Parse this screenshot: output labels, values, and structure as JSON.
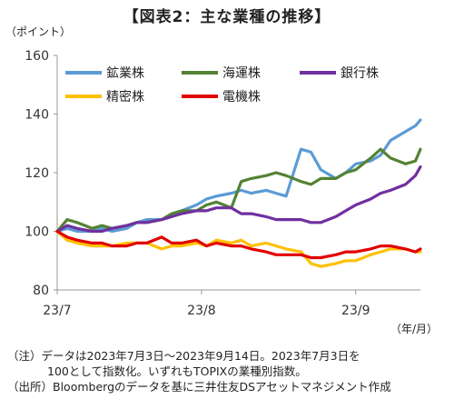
{
  "title": "【図表2：主な業種の推移】",
  "chart_data": {
    "type": "line",
    "y_unit": "（ポイント）",
    "x_unit": "（年/月）",
    "ylim": [
      80,
      160
    ],
    "yticks": [
      80,
      100,
      120,
      140,
      160
    ],
    "xlim": [
      "2023-07-03",
      "2023-09-14"
    ],
    "xticks": [
      {
        "label": "23/7",
        "date": "2023-07-03"
      },
      {
        "label": "23/8",
        "date": "2023-08-01"
      },
      {
        "label": "23/9",
        "date": "2023-09-01"
      }
    ],
    "legend": "top-left, inside plot, 3 columns",
    "series": [
      {
        "name": "鉱業株",
        "color": "#5b9bd5",
        "points": [
          [
            "2023-07-03",
            100
          ],
          [
            "2023-07-05",
            101
          ],
          [
            "2023-07-07",
            100
          ],
          [
            "2023-07-10",
            100
          ],
          [
            "2023-07-12",
            101
          ],
          [
            "2023-07-14",
            100
          ],
          [
            "2023-07-17",
            101
          ],
          [
            "2023-07-19",
            103
          ],
          [
            "2023-07-21",
            104
          ],
          [
            "2023-07-24",
            104
          ],
          [
            "2023-07-26",
            105
          ],
          [
            "2023-07-28",
            107
          ],
          [
            "2023-07-31",
            109
          ],
          [
            "2023-08-02",
            111
          ],
          [
            "2023-08-04",
            112
          ],
          [
            "2023-08-07",
            113
          ],
          [
            "2023-08-09",
            114
          ],
          [
            "2023-08-11",
            113
          ],
          [
            "2023-08-14",
            114
          ],
          [
            "2023-08-16",
            113
          ],
          [
            "2023-08-18",
            112
          ],
          [
            "2023-08-21",
            128
          ],
          [
            "2023-08-23",
            127
          ],
          [
            "2023-08-25",
            121
          ],
          [
            "2023-08-28",
            118
          ],
          [
            "2023-08-30",
            120
          ],
          [
            "2023-09-01",
            123
          ],
          [
            "2023-09-04",
            124
          ],
          [
            "2023-09-06",
            126
          ],
          [
            "2023-09-08",
            131
          ],
          [
            "2023-09-11",
            134
          ],
          [
            "2023-09-13",
            136
          ],
          [
            "2023-09-14",
            138
          ]
        ]
      },
      {
        "name": "海運株",
        "color": "#548235",
        "points": [
          [
            "2023-07-03",
            100
          ],
          [
            "2023-07-05",
            104
          ],
          [
            "2023-07-07",
            103
          ],
          [
            "2023-07-10",
            101
          ],
          [
            "2023-07-12",
            102
          ],
          [
            "2023-07-14",
            101
          ],
          [
            "2023-07-17",
            102
          ],
          [
            "2023-07-19",
            103
          ],
          [
            "2023-07-21",
            103
          ],
          [
            "2023-07-24",
            104
          ],
          [
            "2023-07-26",
            106
          ],
          [
            "2023-07-28",
            107
          ],
          [
            "2023-07-31",
            107
          ],
          [
            "2023-08-02",
            109
          ],
          [
            "2023-08-04",
            110
          ],
          [
            "2023-08-07",
            108
          ],
          [
            "2023-08-09",
            117
          ],
          [
            "2023-08-11",
            118
          ],
          [
            "2023-08-14",
            119
          ],
          [
            "2023-08-16",
            120
          ],
          [
            "2023-08-18",
            119
          ],
          [
            "2023-08-21",
            117
          ],
          [
            "2023-08-23",
            116
          ],
          [
            "2023-08-25",
            118
          ],
          [
            "2023-08-28",
            118
          ],
          [
            "2023-08-30",
            120
          ],
          [
            "2023-09-01",
            121
          ],
          [
            "2023-09-04",
            125
          ],
          [
            "2023-09-06",
            128
          ],
          [
            "2023-09-08",
            125
          ],
          [
            "2023-09-11",
            123
          ],
          [
            "2023-09-13",
            124
          ],
          [
            "2023-09-14",
            128
          ]
        ]
      },
      {
        "name": "銀行株",
        "color": "#7030a0",
        "points": [
          [
            "2023-07-03",
            100
          ],
          [
            "2023-07-05",
            102
          ],
          [
            "2023-07-07",
            101
          ],
          [
            "2023-07-10",
            100
          ],
          [
            "2023-07-12",
            100
          ],
          [
            "2023-07-14",
            101
          ],
          [
            "2023-07-17",
            102
          ],
          [
            "2023-07-19",
            103
          ],
          [
            "2023-07-21",
            103
          ],
          [
            "2023-07-24",
            104
          ],
          [
            "2023-07-26",
            105
          ],
          [
            "2023-07-28",
            106
          ],
          [
            "2023-07-31",
            107
          ],
          [
            "2023-08-02",
            107
          ],
          [
            "2023-08-04",
            108
          ],
          [
            "2023-08-07",
            108
          ],
          [
            "2023-08-09",
            106
          ],
          [
            "2023-08-11",
            106
          ],
          [
            "2023-08-14",
            105
          ],
          [
            "2023-08-16",
            104
          ],
          [
            "2023-08-18",
            104
          ],
          [
            "2023-08-21",
            104
          ],
          [
            "2023-08-23",
            103
          ],
          [
            "2023-08-25",
            103
          ],
          [
            "2023-08-28",
            105
          ],
          [
            "2023-08-30",
            107
          ],
          [
            "2023-09-01",
            109
          ],
          [
            "2023-09-04",
            111
          ],
          [
            "2023-09-06",
            113
          ],
          [
            "2023-09-08",
            114
          ],
          [
            "2023-09-11",
            116
          ],
          [
            "2023-09-13",
            119
          ],
          [
            "2023-09-14",
            122
          ]
        ]
      },
      {
        "name": "精密株",
        "color": "#ffc000",
        "points": [
          [
            "2023-07-03",
            100
          ],
          [
            "2023-07-05",
            97
          ],
          [
            "2023-07-07",
            96
          ],
          [
            "2023-07-10",
            95
          ],
          [
            "2023-07-12",
            95
          ],
          [
            "2023-07-14",
            95
          ],
          [
            "2023-07-17",
            96
          ],
          [
            "2023-07-19",
            96
          ],
          [
            "2023-07-21",
            96
          ],
          [
            "2023-07-24",
            94
          ],
          [
            "2023-07-26",
            95
          ],
          [
            "2023-07-28",
            95
          ],
          [
            "2023-07-31",
            96
          ],
          [
            "2023-08-02",
            95
          ],
          [
            "2023-08-04",
            97
          ],
          [
            "2023-08-07",
            96
          ],
          [
            "2023-08-09",
            97
          ],
          [
            "2023-08-11",
            95
          ],
          [
            "2023-08-14",
            96
          ],
          [
            "2023-08-16",
            95
          ],
          [
            "2023-08-18",
            94
          ],
          [
            "2023-08-21",
            93
          ],
          [
            "2023-08-23",
            89
          ],
          [
            "2023-08-25",
            88
          ],
          [
            "2023-08-28",
            89
          ],
          [
            "2023-08-30",
            90
          ],
          [
            "2023-09-01",
            90
          ],
          [
            "2023-09-04",
            92
          ],
          [
            "2023-09-06",
            93
          ],
          [
            "2023-09-08",
            94
          ],
          [
            "2023-09-11",
            94
          ],
          [
            "2023-09-13",
            93
          ],
          [
            "2023-09-14",
            93
          ]
        ]
      },
      {
        "name": "電機株",
        "color": "#e00000",
        "points": [
          [
            "2023-07-03",
            100
          ],
          [
            "2023-07-05",
            98
          ],
          [
            "2023-07-07",
            97
          ],
          [
            "2023-07-10",
            96
          ],
          [
            "2023-07-12",
            96
          ],
          [
            "2023-07-14",
            95
          ],
          [
            "2023-07-17",
            95
          ],
          [
            "2023-07-19",
            96
          ],
          [
            "2023-07-21",
            96
          ],
          [
            "2023-07-24",
            98
          ],
          [
            "2023-07-26",
            96
          ],
          [
            "2023-07-28",
            96
          ],
          [
            "2023-07-31",
            97
          ],
          [
            "2023-08-02",
            95
          ],
          [
            "2023-08-04",
            96
          ],
          [
            "2023-08-07",
            95
          ],
          [
            "2023-08-09",
            95
          ],
          [
            "2023-08-11",
            94
          ],
          [
            "2023-08-14",
            93
          ],
          [
            "2023-08-16",
            92
          ],
          [
            "2023-08-18",
            92
          ],
          [
            "2023-08-21",
            92
          ],
          [
            "2023-08-23",
            91
          ],
          [
            "2023-08-25",
            91
          ],
          [
            "2023-08-28",
            92
          ],
          [
            "2023-08-30",
            93
          ],
          [
            "2023-09-01",
            93
          ],
          [
            "2023-09-04",
            94
          ],
          [
            "2023-09-06",
            95
          ],
          [
            "2023-09-08",
            95
          ],
          [
            "2023-09-11",
            94
          ],
          [
            "2023-09-13",
            93
          ],
          [
            "2023-09-14",
            94
          ]
        ]
      }
    ]
  },
  "notes": [
    "（注）データは2023年7月3日～2023年9月14日。2023年7月3日を",
    "100として指数化。いずれもTOPIXの業種別指数。",
    "（出所）Bloombergのデータを基に三井住友DSアセットマネジメント作成"
  ]
}
